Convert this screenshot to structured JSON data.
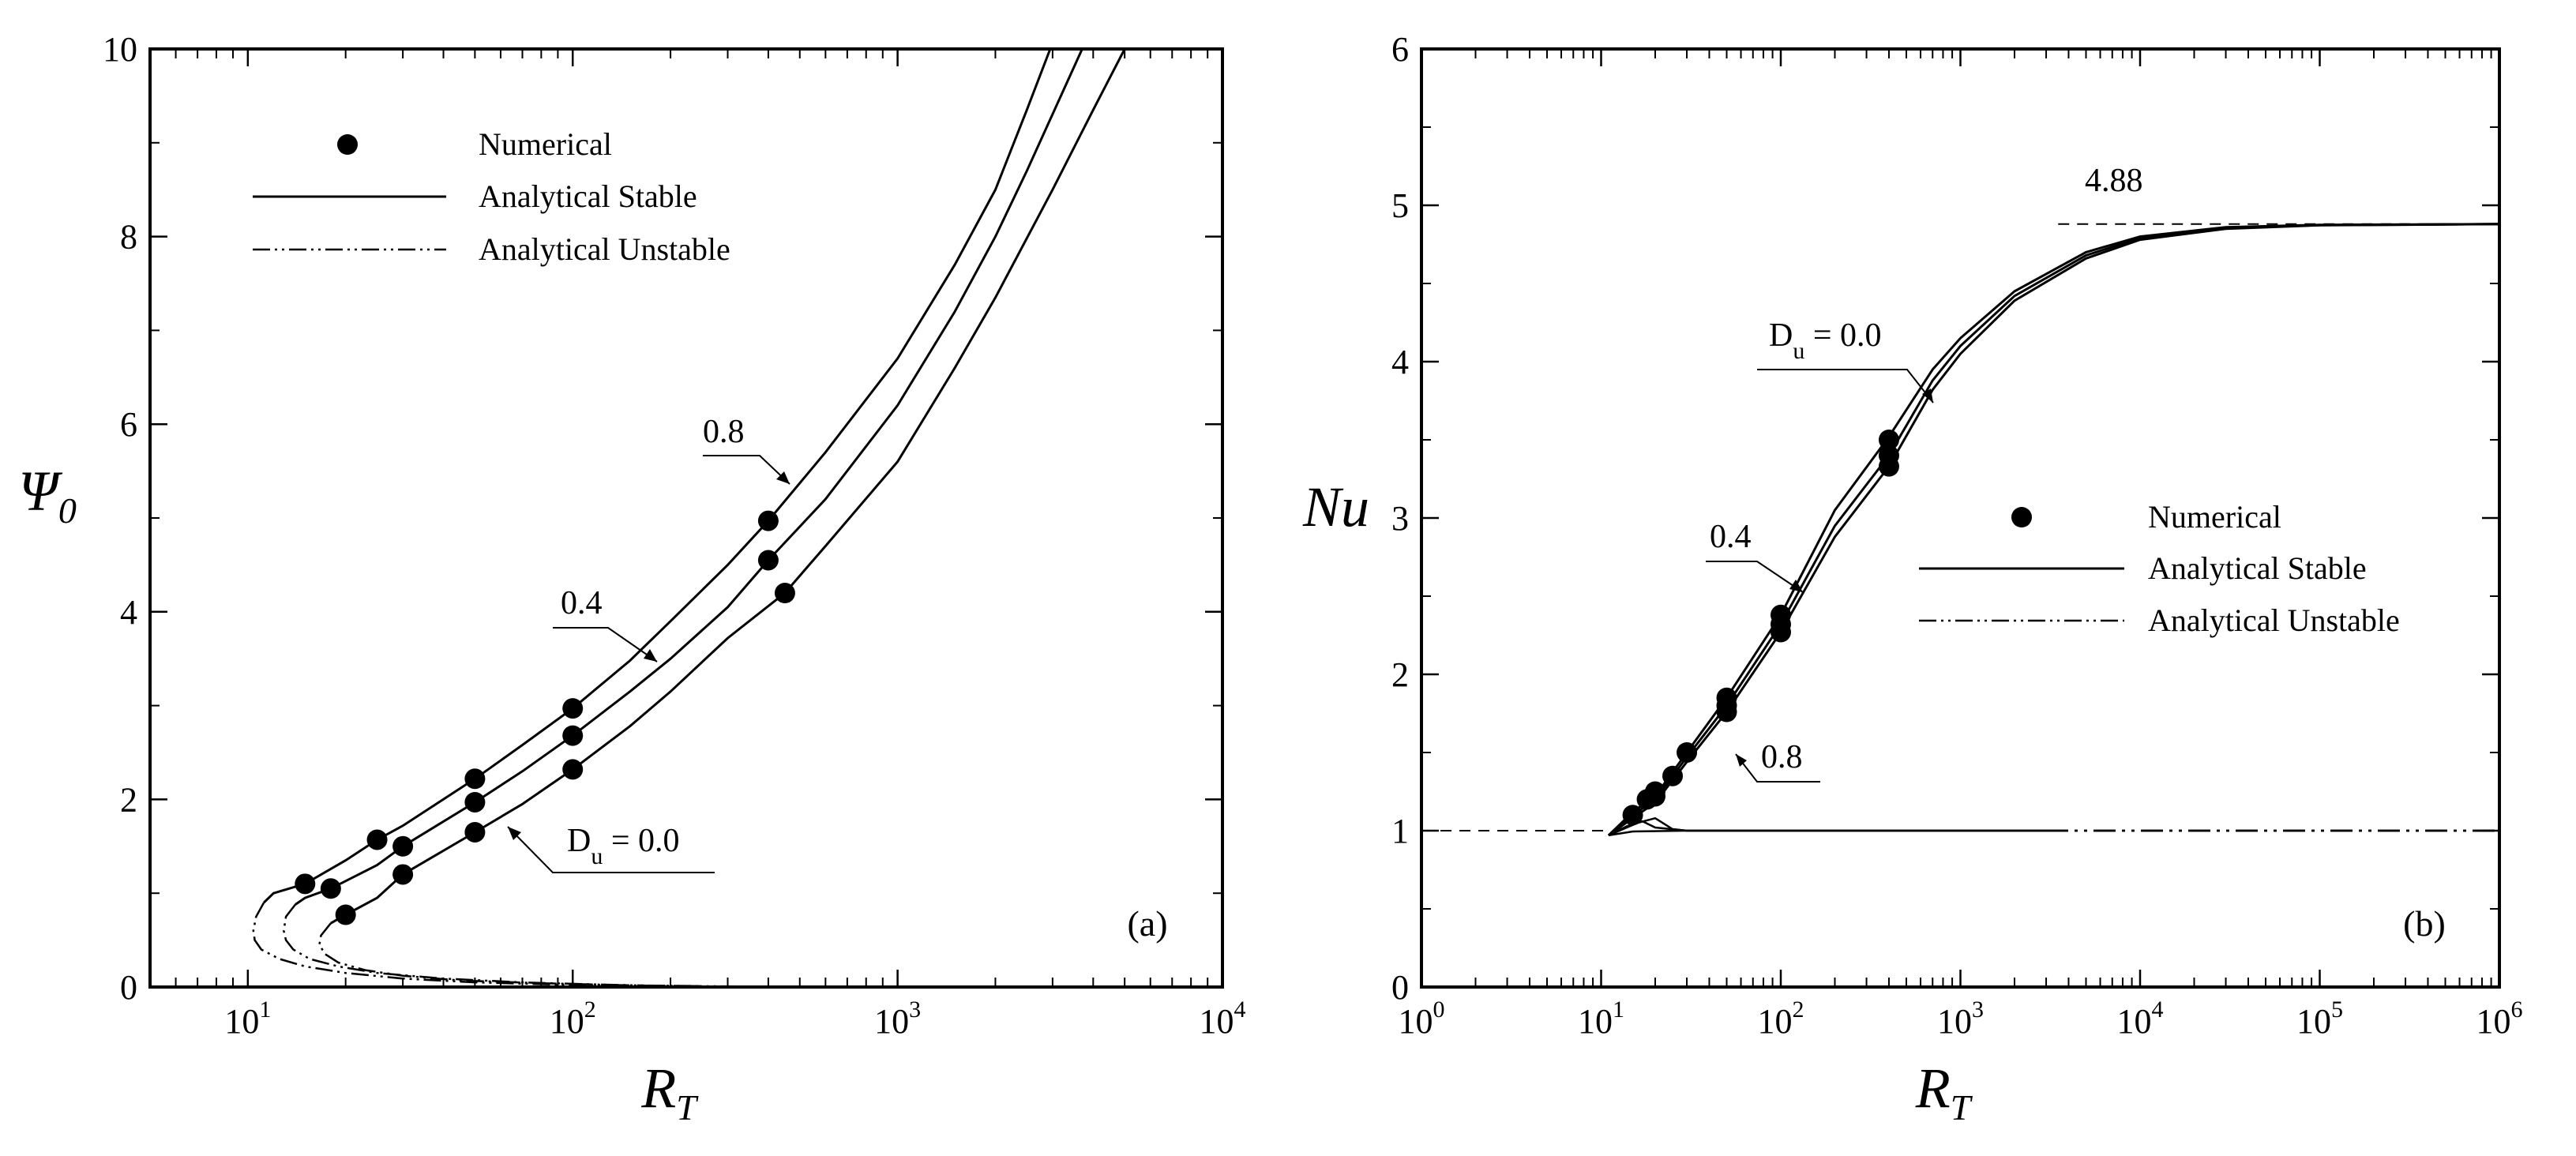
{
  "chart_data": [
    {
      "type": "line",
      "panel": "(a)",
      "panel_label": "(a)",
      "xlabel": "R",
      "xlabel_sub": "T",
      "ylabel": "Ψ",
      "ylabel_sub": "0",
      "xscale": "log",
      "xlim": [
        5,
        10000
      ],
      "ylim": [
        0,
        10
      ],
      "x_ticks": [
        {
          "value": 10,
          "base": "10",
          "exp": "1"
        },
        {
          "value": 100,
          "base": "10",
          "exp": "2"
        },
        {
          "value": 1000,
          "base": "10",
          "exp": "3"
        },
        {
          "value": 10000,
          "base": "10",
          "exp": "4"
        }
      ],
      "y_ticks": [
        "0",
        "2",
        "4",
        "6",
        "8",
        "10"
      ],
      "legend": {
        "position": "top-left",
        "entries": [
          {
            "label": "Numerical",
            "style": "marker"
          },
          {
            "label": "Analytical Stable",
            "style": "solid"
          },
          {
            "label": "Analytical Unstable",
            "style": "dashdotdot"
          }
        ]
      },
      "series": [
        {
          "name": "Du=0.8",
          "label": "0.8",
          "stable": [
            [
              11.2,
              0.9
            ],
            [
              12,
              1.0
            ],
            [
              15,
              1.1
            ],
            [
              20,
              1.35
            ],
            [
              25,
              1.57
            ],
            [
              30,
              1.72
            ],
            [
              50,
              2.22
            ],
            [
              70,
              2.58
            ],
            [
              100,
              2.97
            ],
            [
              150,
              3.48
            ],
            [
              200,
              3.9
            ],
            [
              300,
              4.5
            ],
            [
              400,
              4.97
            ],
            [
              600,
              5.7
            ],
            [
              1000,
              6.7
            ],
            [
              1500,
              7.7
            ],
            [
              2000,
              8.5
            ],
            [
              2500,
              9.35
            ],
            [
              2950,
              10
            ]
          ],
          "unstable": [
            [
              11.2,
              0.9
            ],
            [
              10.6,
              0.75
            ],
            [
              10.4,
              0.6
            ],
            [
              10.5,
              0.5
            ],
            [
              11,
              0.4
            ],
            [
              12.5,
              0.3
            ],
            [
              15,
              0.22
            ],
            [
              20,
              0.15
            ],
            [
              30,
              0.09
            ],
            [
              50,
              0.05
            ],
            [
              80,
              0.03
            ],
            [
              120,
              0.015
            ],
            [
              180,
              0.01
            ]
          ],
          "numerical": [
            [
              15,
              1.1
            ],
            [
              25,
              1.57
            ],
            [
              50,
              2.22
            ],
            [
              100,
              2.97
            ],
            [
              400,
              4.97
            ]
          ]
        },
        {
          "name": "Du=0.4",
          "label": "0.4",
          "stable": [
            [
              14,
              0.88
            ],
            [
              15,
              0.95
            ],
            [
              18,
              1.05
            ],
            [
              25,
              1.3
            ],
            [
              30,
              1.5
            ],
            [
              50,
              1.97
            ],
            [
              70,
              2.3
            ],
            [
              100,
              2.68
            ],
            [
              150,
              3.15
            ],
            [
              200,
              3.5
            ],
            [
              300,
              4.05
            ],
            [
              400,
              4.55
            ],
            [
              600,
              5.2
            ],
            [
              1000,
              6.2
            ],
            [
              1500,
              7.2
            ],
            [
              2000,
              8.0
            ],
            [
              2500,
              8.7
            ],
            [
              3700,
              10
            ]
          ],
          "unstable": [
            [
              14,
              0.88
            ],
            [
              13.1,
              0.75
            ],
            [
              12.9,
              0.6
            ],
            [
              13.1,
              0.5
            ],
            [
              13.8,
              0.4
            ],
            [
              15.5,
              0.3
            ],
            [
              19,
              0.22
            ],
            [
              25,
              0.15
            ],
            [
              40,
              0.09
            ],
            [
              70,
              0.05
            ],
            [
              110,
              0.03
            ],
            [
              170,
              0.015
            ],
            [
              250,
              0.01
            ]
          ],
          "numerical": [
            [
              18,
              1.05
            ],
            [
              30,
              1.5
            ],
            [
              50,
              1.97
            ],
            [
              100,
              2.68
            ],
            [
              400,
              4.55
            ]
          ]
        },
        {
          "name": "Du=0.0",
          "label": "D_u = 0.0",
          "label_main": "D",
          "label_sub": "u",
          "label_rest": " = 0.0",
          "stable": [
            [
              18,
              0.68
            ],
            [
              20,
              0.77
            ],
            [
              25,
              0.95
            ],
            [
              30,
              1.2
            ],
            [
              50,
              1.65
            ],
            [
              70,
              1.95
            ],
            [
              100,
              2.32
            ],
            [
              150,
              2.78
            ],
            [
              200,
              3.15
            ],
            [
              300,
              3.72
            ],
            [
              450,
              4.2
            ],
            [
              600,
              4.7
            ],
            [
              1000,
              5.6
            ],
            [
              1500,
              6.6
            ],
            [
              2000,
              7.35
            ],
            [
              3000,
              8.5
            ],
            [
              4000,
              9.35
            ],
            [
              5000,
              10
            ]
          ],
          "unstable": [
            [
              18,
              0.68
            ],
            [
              16.8,
              0.55
            ],
            [
              16.6,
              0.45
            ],
            [
              17.3,
              0.35
            ],
            [
              19,
              0.26
            ],
            [
              23,
              0.18
            ],
            [
              30,
              0.12
            ],
            [
              45,
              0.07
            ],
            [
              80,
              0.04
            ],
            [
              140,
              0.02
            ],
            [
              230,
              0.01
            ],
            [
              350,
              0.005
            ]
          ],
          "numerical": [
            [
              20,
              0.77
            ],
            [
              30,
              1.2
            ],
            [
              50,
              1.65
            ],
            [
              100,
              2.32
            ],
            [
              450,
              4.2
            ]
          ]
        }
      ],
      "annotations": [
        {
          "text": "0.8",
          "x": 400,
          "y": 5.3
        },
        {
          "text": "0.4",
          "x": 200,
          "y": 4.0
        },
        {
          "text": "D_u = 0.0",
          "x": 110,
          "y": 1.5
        }
      ]
    },
    {
      "type": "line",
      "panel": "(b)",
      "panel_label": "(b)",
      "xlabel": "R",
      "xlabel_sub": "T",
      "ylabel": "Nu",
      "xscale": "log",
      "xlim": [
        1,
        1000000
      ],
      "ylim": [
        0,
        6
      ],
      "x_ticks": [
        {
          "value": 1,
          "base": "10",
          "exp": "0"
        },
        {
          "value": 10,
          "base": "10",
          "exp": "1"
        },
        {
          "value": 100,
          "base": "10",
          "exp": "2"
        },
        {
          "value": 1000,
          "base": "10",
          "exp": "3"
        },
        {
          "value": 10000,
          "base": "10",
          "exp": "4"
        },
        {
          "value": 100000,
          "base": "10",
          "exp": "5"
        },
        {
          "value": 1000000,
          "base": "10",
          "exp": "6"
        }
      ],
      "y_ticks": [
        "0",
        "1",
        "2",
        "3",
        "4",
        "5",
        "6"
      ],
      "legend": {
        "position": "center-right",
        "entries": [
          {
            "label": "Numerical",
            "style": "marker"
          },
          {
            "label": "Analytical Stable",
            "style": "solid"
          },
          {
            "label": "Analytical Unstable",
            "style": "dashdotdot"
          }
        ]
      },
      "asymptotes": [
        {
          "value": 4.88,
          "label": "4.88",
          "x_from": 3500,
          "x_to": 1000000
        },
        {
          "value": 1,
          "x_from": 1,
          "x_to": 11
        }
      ],
      "series": [
        {
          "name": "Du=0.0",
          "label": "D_u = 0.0",
          "label_main": "D",
          "label_sub": "u",
          "label_rest": " = 0.0",
          "stable": [
            [
              11,
              0.97
            ],
            [
              13,
              1.05
            ],
            [
              15,
              1.12
            ],
            [
              20,
              1.22
            ],
            [
              30,
              1.5
            ],
            [
              50,
              1.85
            ],
            [
              100,
              2.38
            ],
            [
              200,
              3.05
            ],
            [
              400,
              3.52
            ],
            [
              700,
              3.95
            ],
            [
              1000,
              4.15
            ],
            [
              2000,
              4.45
            ],
            [
              5000,
              4.7
            ],
            [
              10000,
              4.8
            ],
            [
              30000,
              4.86
            ],
            [
              100000,
              4.875
            ],
            [
              1000000,
              4.88
            ]
          ],
          "numerical": [
            [
              15,
              1.1
            ],
            [
              20,
              1.22
            ],
            [
              30,
              1.5
            ],
            [
              50,
              1.85
            ],
            [
              100,
              2.38
            ],
            [
              400,
              3.5
            ]
          ]
        },
        {
          "name": "Du=0.4",
          "label": "0.4",
          "stable": [
            [
              11,
              0.97
            ],
            [
              13,
              1.04
            ],
            [
              15,
              1.1
            ],
            [
              20,
              1.2
            ],
            [
              30,
              1.47
            ],
            [
              50,
              1.8
            ],
            [
              100,
              2.32
            ],
            [
              200,
              2.95
            ],
            [
              400,
              3.4
            ],
            [
              700,
              3.88
            ],
            [
              1000,
              4.1
            ],
            [
              2000,
              4.42
            ],
            [
              5000,
              4.68
            ],
            [
              10000,
              4.79
            ],
            [
              30000,
              4.855
            ],
            [
              100000,
              4.873
            ],
            [
              1000000,
              4.88
            ]
          ],
          "numerical": [
            [
              18,
              1.2
            ],
            [
              25,
              1.35
            ],
            [
              50,
              1.8
            ],
            [
              100,
              2.32
            ],
            [
              400,
              3.4
            ]
          ]
        },
        {
          "name": "Du=0.8",
          "label": "0.8",
          "stable": [
            [
              11,
              0.97
            ],
            [
              13,
              1.03
            ],
            [
              15,
              1.08
            ],
            [
              20,
              1.18
            ],
            [
              30,
              1.44
            ],
            [
              50,
              1.76
            ],
            [
              100,
              2.27
            ],
            [
              200,
              2.88
            ],
            [
              400,
              3.33
            ],
            [
              700,
              3.82
            ],
            [
              1000,
              4.05
            ],
            [
              2000,
              4.39
            ],
            [
              5000,
              4.66
            ],
            [
              10000,
              4.78
            ],
            [
              30000,
              4.85
            ],
            [
              100000,
              4.872
            ],
            [
              1000000,
              4.88
            ]
          ],
          "numerical": [
            [
              20,
              1.25
            ],
            [
              50,
              1.76
            ],
            [
              100,
              2.27
            ],
            [
              400,
              3.33
            ]
          ]
        }
      ],
      "unstable_branches": [
        {
          "name": "Du=0.0",
          "stable_tail": [
            [
              11,
              0.97
            ],
            [
              15,
              0.995
            ],
            [
              30,
              1.0
            ],
            [
              3000,
              1.0
            ]
          ],
          "unstable_tail": [
            [
              3000,
              1.0
            ],
            [
              1000000,
              1.0
            ]
          ]
        },
        {
          "name": "Du=0.4",
          "stable_tail": [
            [
              11,
              0.97
            ],
            [
              14,
              1.03
            ],
            [
              17,
              1.06
            ],
            [
              20,
              1.02
            ],
            [
              30,
              1.0
            ],
            [
              3000,
              1.0
            ]
          ],
          "unstable_tail": [
            [
              3000,
              1.0
            ],
            [
              1000000,
              1.0
            ]
          ]
        },
        {
          "name": "Du=0.8",
          "stable_tail": [
            [
              11,
              0.97
            ],
            [
              16,
              1.05
            ],
            [
              20,
              1.08
            ],
            [
              25,
              1.01
            ],
            [
              30,
              1.0
            ],
            [
              3000,
              1.0
            ]
          ],
          "unstable_tail": [
            [
              3000,
              1.0
            ],
            [
              1000000,
              1.0
            ]
          ]
        }
      ],
      "annotations": [
        {
          "text": "D_u = 0.0",
          "x": 400,
          "y": 3.95
        },
        {
          "text": "0.4",
          "x": 100,
          "y": 2.6
        },
        {
          "text": "0.8",
          "x": 50,
          "y": 1.65
        },
        {
          "text": "4.88",
          "x": 5000,
          "y": 4.88
        }
      ]
    }
  ]
}
